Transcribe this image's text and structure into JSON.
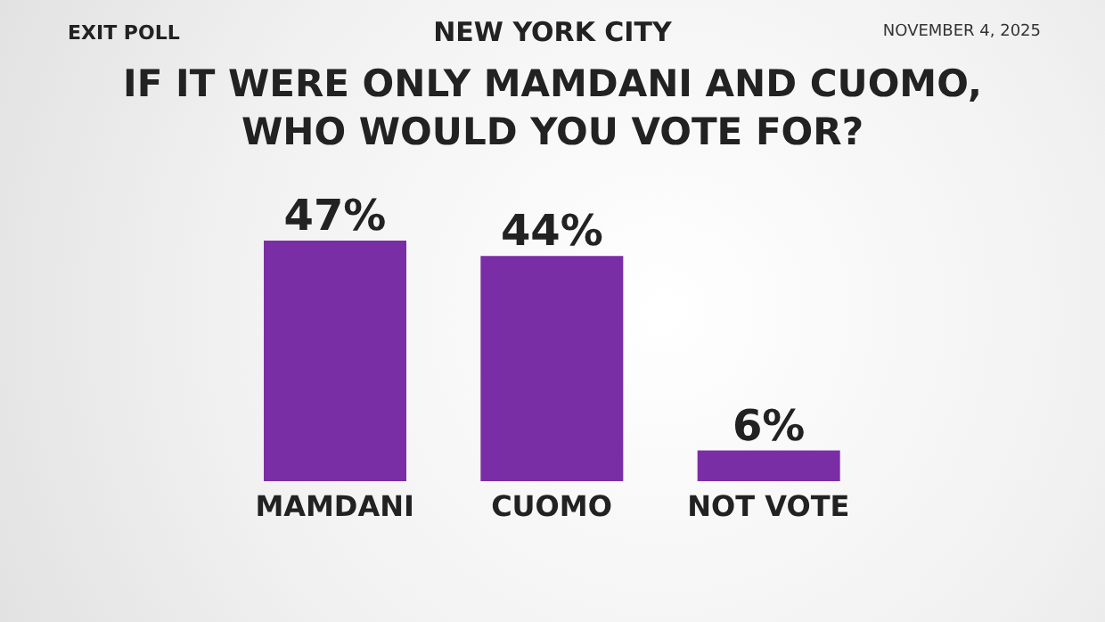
{
  "chart_data": {
    "type": "bar",
    "title": "IF IT WERE ONLY MAMDANI AND CUOMO,\nWHO WOULD YOU VOTE FOR?",
    "subtitle": "NEW YORK CITY",
    "annotations": [
      "EXIT POLL",
      "NOVEMBER 4, 2025"
    ],
    "categories": [
      "MAMDANI",
      "CUOMO",
      "NOT VOTE"
    ],
    "values": [
      47,
      44,
      6
    ],
    "value_labels": [
      "47%",
      "44%",
      "6%"
    ],
    "color": "#7a2ea6"
  }
}
